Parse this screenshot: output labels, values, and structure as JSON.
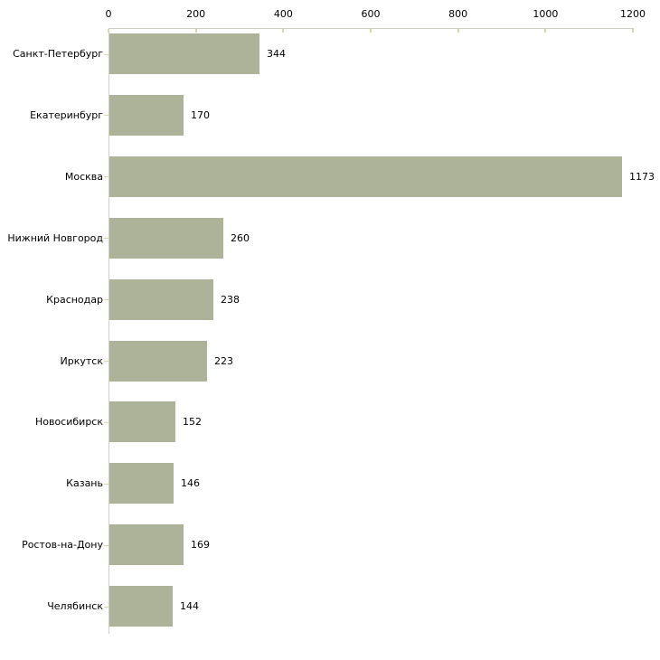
{
  "chart_data": {
    "type": "bar",
    "orientation": "horizontal",
    "title": "",
    "xlabel": "",
    "ylabel": "",
    "categories": [
      "Санкт-Петербург",
      "Екатеринбург",
      "Москва",
      "Нижний Новгород",
      "Краснодар",
      "Иркутск",
      "Новосибирск",
      "Казань",
      "Ростов-на-Дону",
      "Челябинск"
    ],
    "values": [
      344,
      170,
      1173,
      260,
      238,
      223,
      152,
      146,
      169,
      144
    ],
    "value_labels": [
      "344",
      "170",
      "1173",
      "260",
      "238",
      "223",
      "152",
      "146",
      "169",
      "144"
    ],
    "x_ticks": [
      0,
      200,
      400,
      600,
      800,
      1000,
      1200
    ],
    "x_tick_labels": [
      "0",
      "200",
      "400",
      "600",
      "800",
      "1000",
      "1200"
    ],
    "xlim": [
      0,
      1200
    ],
    "x_axis_position": "top",
    "grid": false,
    "legend": false,
    "colors": {
      "bar": "#adb399",
      "axis_line": "#cfcfc8",
      "tick_mark": "#d6d9ae",
      "text": "#000000",
      "background": "#ffffff"
    }
  }
}
